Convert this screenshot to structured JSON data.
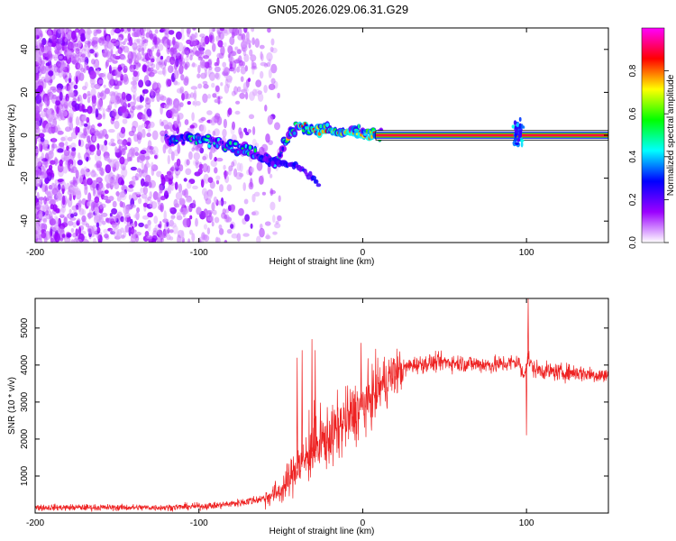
{
  "title": "GN05.2026.029.06.31.G29",
  "chart_data": [
    {
      "type": "heatmap",
      "name": "spectrogram",
      "xlabel": "Height of straight line (km)",
      "ylabel": "Frequency (Hz)",
      "xlim": [
        -200,
        150
      ],
      "ylim": [
        -50,
        50
      ],
      "xticks": [
        -200,
        -100,
        0,
        100
      ],
      "yticks": [
        -40,
        -20,
        0,
        20,
        40
      ],
      "colorbar": {
        "label": "Normalized spectral amplitude",
        "range": [
          0,
          1
        ],
        "ticks": [
          "0.0",
          "0.2",
          "0.4",
          "0.6",
          "0.8"
        ],
        "tick_values": [
          0,
          0.2,
          0.4,
          0.6,
          0.8
        ],
        "colors": [
          "#ffffff",
          "#9b00ff",
          "#0000ff",
          "#00ffff",
          "#00ff00",
          "#ffff00",
          "#ff0000",
          "#ff00ff"
        ]
      },
      "signal_track": {
        "x": [
          -120,
          -110,
          -100,
          -90,
          -80,
          -70,
          -60,
          -52,
          -48,
          -45,
          -40,
          -35,
          -30,
          -25,
          -20,
          -15,
          -10,
          -5,
          0,
          10,
          150
        ],
        "freq": [
          -2,
          -1,
          -2,
          -3,
          -5,
          -7,
          -10,
          -13,
          -4,
          1,
          4,
          4,
          3,
          3,
          2,
          2,
          1,
          2,
          1,
          0,
          0
        ]
      },
      "branch": {
        "x": [
          -60,
          -50,
          -40,
          -35,
          -30,
          -27
        ],
        "freq": [
          -12,
          -13,
          -14,
          -17,
          -20,
          -23
        ]
      },
      "burst_at_km": 95
    },
    {
      "type": "line",
      "name": "snr",
      "xlabel": "Height of straight line (km)",
      "ylabel": "SNR (10 * v/v)",
      "xlim": [
        -200,
        150
      ],
      "ylim": [
        0,
        5800
      ],
      "xticks": [
        -200,
        -100,
        0,
        100
      ],
      "yticks": [
        1000,
        2000,
        3000,
        4000,
        5000
      ],
      "color": "#ee2222",
      "envelope": {
        "x": [
          -200,
          -120,
          -90,
          -75,
          -60,
          -50,
          -45,
          -40,
          -35,
          -30,
          -25,
          -20,
          -15,
          -10,
          -5,
          0,
          5,
          10,
          20,
          30,
          40,
          50,
          60,
          80,
          90,
          95,
          98,
          101,
          104,
          110,
          120,
          130,
          140,
          150
        ],
        "y": [
          150,
          150,
          200,
          280,
          400,
          600,
          900,
          1200,
          1500,
          1700,
          1900,
          2100,
          2300,
          2500,
          2700,
          2900,
          3100,
          3400,
          3800,
          4000,
          4050,
          4080,
          4050,
          4000,
          4050,
          4100,
          3700,
          4200,
          3900,
          3850,
          3800,
          3800,
          3750,
          3700
        ]
      },
      "spikes": [
        {
          "x": -40,
          "y": 4200
        },
        {
          "x": -37,
          "y": 4400
        },
        {
          "x": -31,
          "y": 4700
        },
        {
          "x": -29,
          "y": 4400
        },
        {
          "x": -1,
          "y": 4600
        },
        {
          "x": 100,
          "y": 2100
        },
        {
          "x": 101,
          "y": 5800
        }
      ]
    }
  ]
}
